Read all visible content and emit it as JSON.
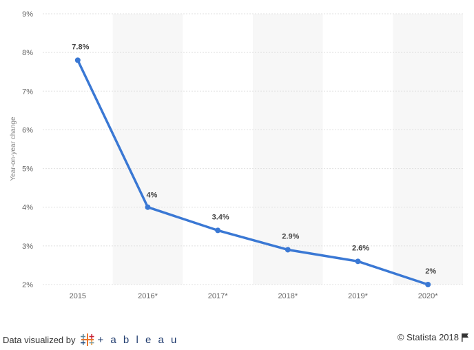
{
  "chart_data": {
    "type": "line",
    "categories": [
      "2015",
      "2016*",
      "2017*",
      "2018*",
      "2019*",
      "2020*"
    ],
    "series": [
      {
        "values": [
          7.8,
          4.0,
          3.4,
          2.9,
          2.6,
          2.0
        ]
      }
    ],
    "data_labels": [
      "7.8%",
      "4%",
      "3.4%",
      "2.9%",
      "2.6%",
      "2%"
    ],
    "ylabel": "Year-on-year change",
    "ylim": [
      2,
      9
    ],
    "yticks": [
      2,
      3,
      4,
      5,
      6,
      7,
      8,
      9
    ],
    "ytick_labels": [
      "2%",
      "3%",
      "4%",
      "5%",
      "6%",
      "7%",
      "8%",
      "9%"
    ],
    "grid": true,
    "line_color": "#3a78d4",
    "band_color": "#f7f7f7"
  },
  "footer": {
    "visualized_by": "Data visualized by",
    "tableau_logo_text": "+ a b l e a u",
    "copyright": "© Statista 2018"
  }
}
